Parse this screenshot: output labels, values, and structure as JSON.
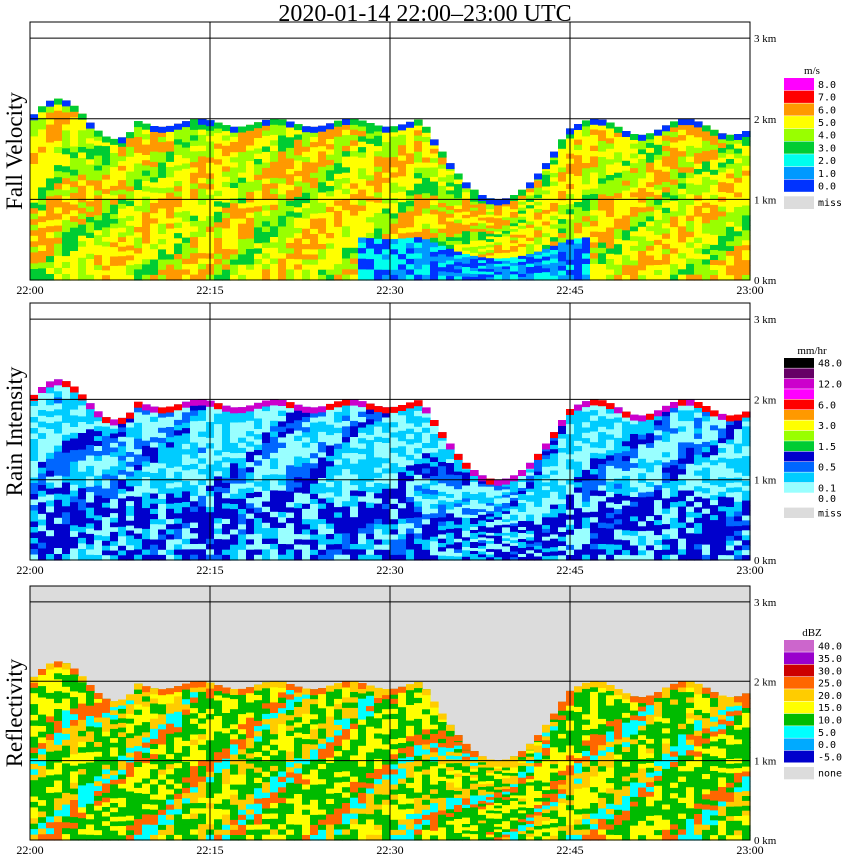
{
  "title": "2020-01-14   22:00–23:00 UTC",
  "chart_data": [
    {
      "type": "heatmap",
      "ylabel": "Fall Velocity",
      "x_ticks": [
        "22:00",
        "22:15",
        "22:30",
        "22:45",
        "23:00"
      ],
      "y_ticks": [
        "0 km",
        "1 km",
        "2 km",
        "3 km"
      ],
      "ylim_km": [
        0,
        3.2
      ],
      "grid": true,
      "legend": {
        "unit": "m/s",
        "entries": [
          {
            "label": "8.0",
            "color": "#ff00ff"
          },
          {
            "label": "7.0",
            "color": "#ff0000"
          },
          {
            "label": "6.0",
            "color": "#ff9900"
          },
          {
            "label": "5.0",
            "color": "#ffff00"
          },
          {
            "label": "4.0",
            "color": "#99ff00"
          },
          {
            "label": "3.0",
            "color": "#00cc33"
          },
          {
            "label": "2.0",
            "color": "#00ffee"
          },
          {
            "label": "1.0",
            "color": "#0099ff"
          },
          {
            "label": "0.0",
            "color": "#0033ff"
          },
          {
            "label": "miss",
            "color": "#dcdcdc"
          }
        ]
      }
    },
    {
      "type": "heatmap",
      "ylabel": "Rain Intensity",
      "x_ticks": [
        "22:00",
        "22:15",
        "22:30",
        "22:45",
        "23:00"
      ],
      "y_ticks": [
        "0 km",
        "1 km",
        "2 km",
        "3 km"
      ],
      "ylim_km": [
        0,
        3.2
      ],
      "grid": true,
      "legend": {
        "unit": "mm/hr",
        "entries": [
          {
            "label": "48.0",
            "color": "#000000"
          },
          {
            "label": "",
            "color": "#660066"
          },
          {
            "label": "12.0",
            "color": "#cc00cc"
          },
          {
            "label": "",
            "color": "#ff00ff"
          },
          {
            "label": "6.0",
            "color": "#ff0000"
          },
          {
            "label": "",
            "color": "#ff9900"
          },
          {
            "label": "3.0",
            "color": "#ffff00"
          },
          {
            "label": "",
            "color": "#99ff00"
          },
          {
            "label": "1.5",
            "color": "#00cc33"
          },
          {
            "label": "",
            "color": "#0000cc"
          },
          {
            "label": "0.5",
            "color": "#0066ff"
          },
          {
            "label": "",
            "color": "#00ccff"
          },
          {
            "label": "0.1",
            "color": "#99ffff"
          },
          {
            "label": "0.0",
            "color": "#ffffff"
          },
          {
            "label": "miss",
            "color": "#dcdcdc"
          }
        ]
      }
    },
    {
      "type": "heatmap",
      "ylabel": "Reflectivity",
      "x_ticks": [
        "22:00",
        "22:15",
        "22:30",
        "22:45",
        "23:00"
      ],
      "y_ticks": [
        "0 km",
        "1 km",
        "2 km",
        "3 km"
      ],
      "ylim_km": [
        0,
        3.2
      ],
      "grid": true,
      "legend": {
        "unit": "dBZ",
        "entries": [
          {
            "label": "40.0",
            "color": "#cc66cc"
          },
          {
            "label": "35.0",
            "color": "#9900cc"
          },
          {
            "label": "30.0",
            "color": "#cc0000"
          },
          {
            "label": "25.0",
            "color": "#ff6600"
          },
          {
            "label": "20.0",
            "color": "#ffcc00"
          },
          {
            "label": "15.0",
            "color": "#ffff00"
          },
          {
            "label": "10.0",
            "color": "#00bb00"
          },
          {
            "label": "5.0",
            "color": "#00ffff"
          },
          {
            "label": "0.0",
            "color": "#00aaff"
          },
          {
            "label": "-5.0",
            "color": "#0000cc"
          },
          {
            "label": "none",
            "color": "#dcdcdc"
          }
        ]
      }
    }
  ]
}
